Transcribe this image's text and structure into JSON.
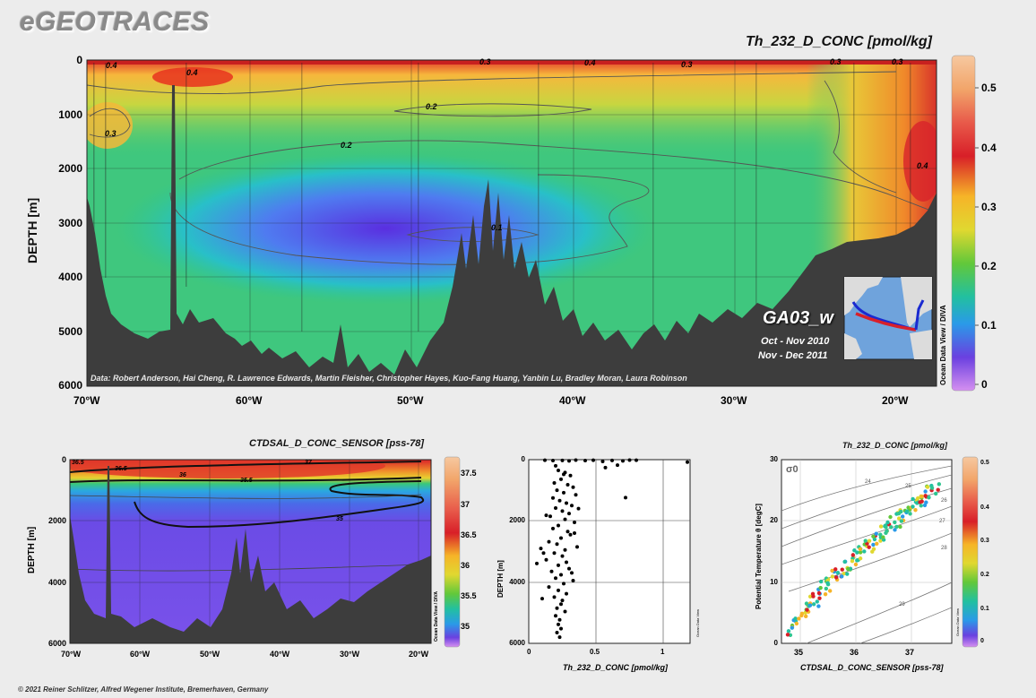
{
  "brand": "eGEOTRACES",
  "footer": "© 2021 Reiner Schlitzer, Alfred Wegener Institute, Bremerhaven, Germany",
  "main_section": {
    "title": "Th_232_D_CONC [pmol/kg]",
    "ylabel": "DEPTH [m]",
    "y_ticks": [
      "0",
      "1000",
      "2000",
      "3000",
      "4000",
      "5000",
      "6000"
    ],
    "x_ticks": [
      "70°W",
      "60°W",
      "50°W",
      "40°W",
      "30°W",
      "20°W"
    ],
    "credit": "Data: Robert Anderson, Hai Cheng, R. Lawrence Edwards, Martin Fleisher, Christopher Hayes, Kuo-Fang Huang, Yanbin Lu, Bradley Moran, Laura Robinson",
    "cruise": "GA03_w",
    "dates": [
      "Oct - Nov 2010",
      "Nov - Dec 2011"
    ],
    "odv_label": "Ocean Data View / DIVA",
    "colorbar_ticks": [
      "0.5",
      "0.4",
      "0.3",
      "0.2",
      "0.1",
      "0"
    ],
    "contour_labels": [
      "0.4",
      "0.4",
      "0.3",
      "0.4",
      "0.3",
      "0.3",
      "0.3",
      "0.2",
      "0.2",
      "0.1",
      "0.4",
      "0.3"
    ]
  },
  "salinity_section": {
    "title": "CTDSAL_D_CONC_SENSOR [pss-78]",
    "ylabel": "DEPTH [m]",
    "y_ticks": [
      "0",
      "2000",
      "4000",
      "6000"
    ],
    "x_ticks": [
      "70°W",
      "60°W",
      "50°W",
      "40°W",
      "30°W",
      "20°W"
    ],
    "odv_label": "Ocean Data View / DIVA",
    "colorbar_ticks": [
      "37.5",
      "37",
      "36.5",
      "36",
      "35.5",
      "35"
    ],
    "contour_labels": [
      "36.5",
      "37",
      "36.5",
      "36",
      "35.5",
      "35"
    ]
  },
  "colors": {
    "seafloor": "#3d3d3d",
    "contour": "#555555",
    "background": "#ececec"
  },
  "chart_data": [
    {
      "type": "heatmap",
      "title": "Th_232_D_CONC [pmol/kg]",
      "xlabel": "",
      "ylabel": "DEPTH [m]",
      "xlim": [
        "72°W",
        "17°W"
      ],
      "ylim": [
        6000,
        0
      ],
      "colorbar_range": [
        0,
        0.55
      ],
      "contour_levels": [
        0.1,
        0.2,
        0.3,
        0.4,
        0.5
      ]
    },
    {
      "type": "heatmap",
      "title": "CTDSAL_D_CONC_SENSOR [pss-78]",
      "xlabel": "",
      "ylabel": "DEPTH [m]",
      "ylim": [
        6000,
        0
      ],
      "colorbar_range": [
        34.8,
        37.7
      ],
      "contour_levels": [
        35,
        35.5,
        36,
        36.5,
        37
      ]
    },
    {
      "type": "scatter",
      "title": "",
      "xlabel": "Th_232_D_CONC [pmol/kg]",
      "ylabel": "DEPTH [m]",
      "xlim": [
        0,
        1.2
      ],
      "ylim": [
        6000,
        0
      ],
      "x_ticks": [
        "0",
        "0.5",
        "1"
      ],
      "y_ticks": [
        "0",
        "2000",
        "4000",
        "6000"
      ],
      "odv_label": "Ocean Data View",
      "points": [
        [
          0.12,
          20
        ],
        [
          0.18,
          30
        ],
        [
          0.25,
          25
        ],
        [
          0.3,
          40
        ],
        [
          0.35,
          15
        ],
        [
          0.42,
          30
        ],
        [
          0.48,
          20
        ],
        [
          0.55,
          60
        ],
        [
          0.62,
          25
        ],
        [
          0.7,
          40
        ],
        [
          0.75,
          15
        ],
        [
          0.8,
          20
        ],
        [
          1.18,
          80
        ],
        [
          0.66,
          180
        ],
        [
          0.57,
          260
        ],
        [
          0.72,
          1240
        ],
        [
          0.2,
          200
        ],
        [
          0.22,
          350
        ],
        [
          0.27,
          420
        ],
        [
          0.31,
          520
        ],
        [
          0.24,
          640
        ],
        [
          0.19,
          760
        ],
        [
          0.29,
          820
        ],
        [
          0.33,
          900
        ],
        [
          0.21,
          1000
        ],
        [
          0.26,
          1080
        ],
        [
          0.35,
          1150
        ],
        [
          0.18,
          1250
        ],
        [
          0.23,
          1340
        ],
        [
          0.28,
          1420
        ],
        [
          0.32,
          1500
        ],
        [
          0.2,
          1580
        ],
        [
          0.25,
          1680
        ],
        [
          0.3,
          1760
        ],
        [
          0.16,
          1850
        ],
        [
          0.27,
          1950
        ],
        [
          0.34,
          2050
        ],
        [
          0.22,
          2150
        ],
        [
          0.18,
          2250
        ],
        [
          0.29,
          2350
        ],
        [
          0.31,
          2450
        ],
        [
          0.24,
          2560
        ],
        [
          0.15,
          2680
        ],
        [
          0.21,
          2760
        ],
        [
          0.36,
          2850
        ],
        [
          0.27,
          2950
        ],
        [
          0.19,
          3050
        ],
        [
          0.25,
          3150
        ],
        [
          0.13,
          3270
        ],
        [
          0.28,
          3350
        ],
        [
          0.22,
          3450
        ],
        [
          0.3,
          3560
        ],
        [
          0.17,
          3650
        ],
        [
          0.24,
          3760
        ],
        [
          0.2,
          3870
        ],
        [
          0.33,
          3950
        ],
        [
          0.26,
          4050
        ],
        [
          0.15,
          4160
        ],
        [
          0.22,
          4270
        ],
        [
          0.28,
          4380
        ],
        [
          0.19,
          4490
        ],
        [
          0.25,
          4600
        ],
        [
          0.24,
          4720
        ],
        [
          0.21,
          4850
        ],
        [
          0.27,
          4960
        ],
        [
          0.2,
          5100
        ],
        [
          0.23,
          5230
        ],
        [
          0.22,
          5380
        ],
        [
          0.24,
          5520
        ],
        [
          0.21,
          5650
        ],
        [
          0.23,
          5800
        ],
        [
          0.1,
          4540
        ],
        [
          0.06,
          3390
        ],
        [
          0.11,
          3050
        ],
        [
          0.09,
          2900
        ],
        [
          0.13,
          1820
        ],
        [
          0.34,
          2400
        ],
        [
          0.37,
          1600
        ],
        [
          0.32,
          3700
        ],
        [
          0.26,
          480
        ]
      ]
    },
    {
      "type": "scatter",
      "title": "Th_232_D_CONC [pmol/kg]",
      "xlabel": "CTDSAL_D_CONC_SENSOR [pss-78]",
      "ylabel": "Potential Temperature θ [degC]",
      "xlim": [
        34.7,
        38.0
      ],
      "ylim": [
        0,
        30
      ],
      "x_ticks": [
        "35",
        "36",
        "37"
      ],
      "y_ticks": [
        "0",
        "10",
        "20",
        "30"
      ],
      "density_label": "σ0",
      "density_isopycnals": [
        "24",
        "25",
        "26",
        "27",
        "28",
        "29"
      ],
      "colorbar_ticks": [
        "0.5",
        "0.4",
        "0.3",
        "0.2",
        "0.1",
        "0"
      ],
      "odv_label": "Ocean Data View"
    }
  ]
}
